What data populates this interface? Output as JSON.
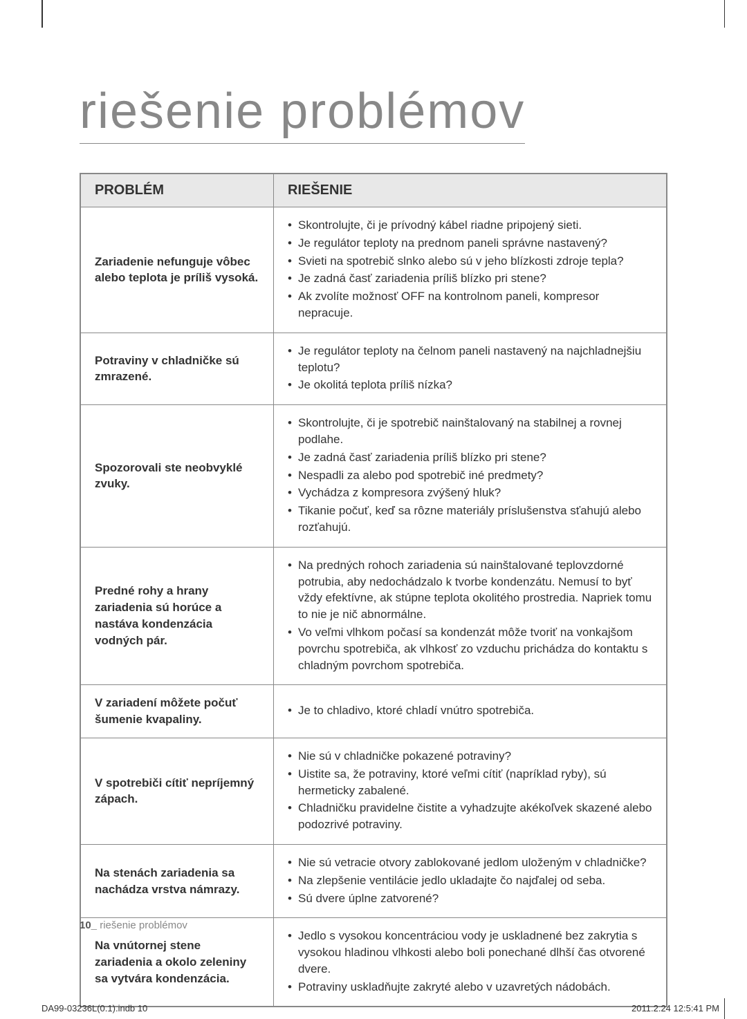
{
  "title": "riešenie problémov",
  "table": {
    "header_problem": "PROBLÉM",
    "header_solution": "RIEŠENIE",
    "rows": [
      {
        "problem": "Zariadenie nefunguje vôbec alebo teplota je príliš vysoká.",
        "solutions": [
          "Skontrolujte, či je prívodný kábel riadne pripojený sieti.",
          "Je regulátor teploty na prednom paneli správne nastavený?",
          "Svieti na spotrebič slnko alebo sú v jeho blízkosti zdroje tepla?",
          "Je zadná časť zariadenia príliš blízko pri stene?",
          "Ak zvolíte možnosť OFF na kontrolnom paneli, kompresor nepracuje."
        ]
      },
      {
        "problem": "Potraviny v chladničke sú zmrazené.",
        "solutions": [
          "Je regulátor teploty na čelnom paneli nastavený na najchladnejšiu teplotu?",
          "Je okolitá teplota príliš nízka?"
        ]
      },
      {
        "problem": "Spozorovali ste neobvyklé zvuky.",
        "solutions": [
          "Skontrolujte, či je spotrebič nainštalovaný na stabilnej a rovnej podlahe.",
          "Je zadná časť zariadenia príliš blízko pri stene?",
          "Nespadli za alebo pod spotrebič iné predmety?",
          "Vychádza z kompresora zvýšený hluk?",
          "Tikanie počuť, keď sa rôzne materiály príslušenstva sťahujú alebo rozťahujú."
        ]
      },
      {
        "problem": "Predné rohy a hrany zariadenia sú horúce a nastáva kondenzácia vodných pár.",
        "solutions": [
          "Na predných rohoch zariadenia sú nainštalované teplovzdorné potrubia, aby nedochádzalo k tvorbe kondenzátu. Nemusí to byť vždy efektívne, ak stúpne teplota okolitého prostredia. Napriek tomu to nie je nič abnormálne.",
          "Vo veľmi vlhkom počasí sa kondenzát môže tvoriť na vonkajšom povrchu spotrebiča, ak vlhkosť zo vzduchu prichádza do kontaktu s chladným povrchom spotrebiča."
        ]
      },
      {
        "problem": "V zariadení môžete počuť šumenie kvapaliny.",
        "solutions": [
          "Je to chladivo, ktoré chladí vnútro spotrebiča."
        ]
      },
      {
        "problem": "V spotrebiči cítiť nepríjemný zápach.",
        "solutions": [
          "Nie sú v chladničke pokazené potraviny?",
          "Uistite sa, že potraviny, ktoré veľmi cítiť (napríklad ryby), sú hermeticky zabalené.",
          "Chladničku pravidelne čistite a vyhadzujte akékoľvek skazené alebo podozrivé potraviny."
        ]
      },
      {
        "problem": "Na stenách zariadenia sa nachádza vrstva námrazy.",
        "solutions": [
          "Nie sú vetracie otvory zablokované jedlom uloženým v chladničke?",
          "Na zlepšenie ventilácie jedlo ukladajte čo najďalej od seba.",
          "Sú dvere úplne zatvorené?"
        ]
      },
      {
        "problem": "Na vnútornej stene zariadenia a okolo zeleniny sa vytvára kondenzácia.",
        "solutions": [
          "Jedlo s vysokou koncentráciou vody je uskladnené bez zakrytia s vysokou hladinou vlhkosti alebo boli ponechané dlhší čas otvorené dvere.",
          "Potraviny uskladňujte zakryté alebo v uzavretých nádobách."
        ]
      }
    ]
  },
  "footer": {
    "page_number": "10_",
    "page_label": "riešenie problémov"
  },
  "print_marks": {
    "filename": "DA99-03236L(0.1).indb   10",
    "timestamp": "2011.2.24   12:5:41 PM"
  }
}
